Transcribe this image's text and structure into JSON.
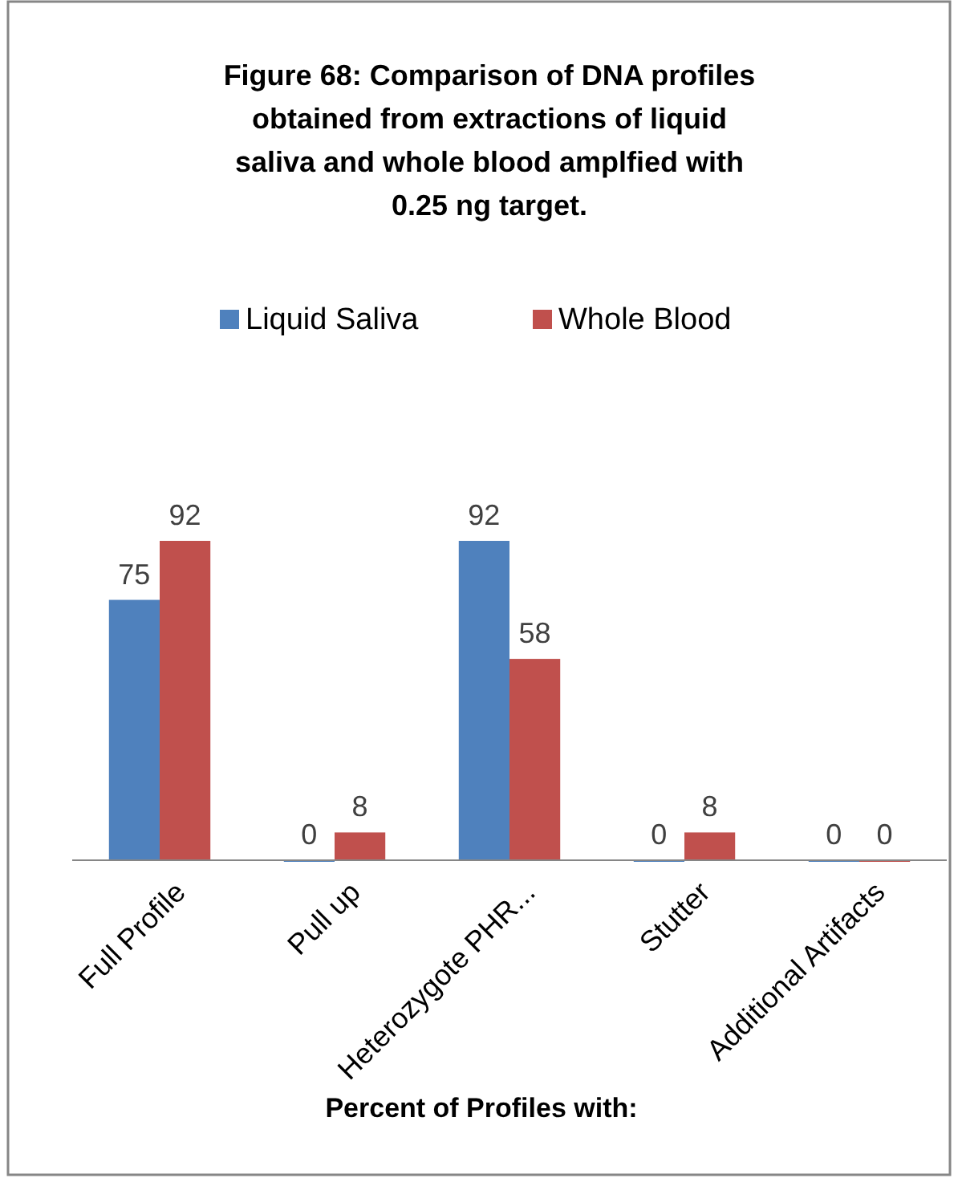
{
  "chart_data": {
    "type": "bar",
    "title": "Figure 68: Comparison of DNA profiles obtained from extractions of liquid saliva and whole blood amplfied with 0.25 ng target.",
    "xlabel": "Percent of Profiles with:",
    "categories": [
      "Full Profile",
      "Pull up",
      "Heterozygote PHR...",
      "Stutter",
      "Additional Artifacts"
    ],
    "series": [
      {
        "name": "Liquid Saliva",
        "color": "#4f81bd",
        "values": [
          75,
          0,
          92,
          0,
          0
        ]
      },
      {
        "name": "Whole Blood",
        "color": "#c0504d",
        "values": [
          92,
          8,
          58,
          8,
          0
        ]
      }
    ],
    "data_labels": true,
    "legend": "top",
    "grid": false
  }
}
